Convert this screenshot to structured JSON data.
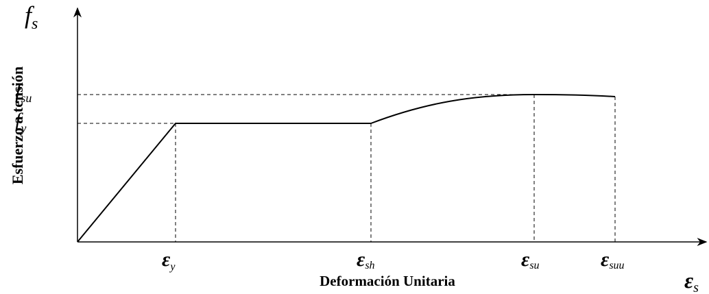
{
  "axes": {
    "y_symbol": {
      "symbol": "f",
      "sub": "s"
    },
    "x_symbol": {
      "symbol": "ε",
      "sub": "s"
    },
    "y_label": "Esfuerzo a tensión",
    "x_label": "Deformación Unitaria"
  },
  "y_levels": [
    {
      "symbol": "f",
      "sub": "su"
    },
    {
      "symbol": "f",
      "sub": "y"
    }
  ],
  "x_points": [
    {
      "symbol": "ε",
      "sub": "y"
    },
    {
      "symbol": "ε",
      "sub": "sh"
    },
    {
      "symbol": "ε",
      "sub": "su"
    },
    {
      "symbol": "ε",
      "sub": "suu"
    }
  ]
}
